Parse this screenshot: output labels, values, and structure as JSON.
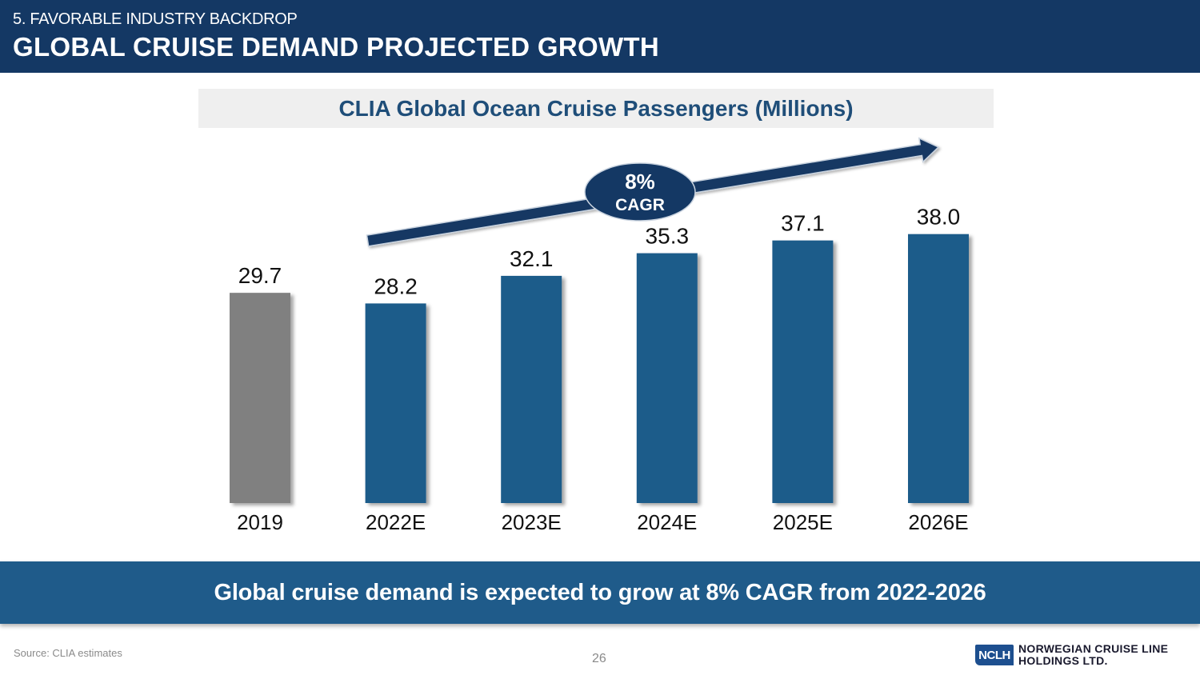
{
  "header": {
    "section_label": "5. FAVORABLE INDUSTRY BACKDROP",
    "title": "GLOBAL CRUISE DEMAND PROJECTED GROWTH"
  },
  "banner": {
    "text": "Global cruise demand is expected to grow at 8% CAGR from 2022-2026"
  },
  "footer": {
    "source": "Source: CLIA estimates",
    "page_number": "26",
    "logo_mark": "NCLH",
    "logo_line1": "NORWEGIAN CRUISE LINE",
    "logo_line2": "HOLDINGS LTD."
  },
  "colors": {
    "header_bg": "#143864",
    "bar_actual": "#808080",
    "bar_estimate": "#1f5b8a",
    "arrow": "#143864",
    "title_text": "#1f4e79"
  },
  "chart_data": {
    "type": "bar",
    "title": "CLIA Global Ocean Cruise Passengers (Millions)",
    "xlabel": "",
    "ylabel": "",
    "categories": [
      "2019",
      "2022E",
      "2023E",
      "2024E",
      "2025E",
      "2026E"
    ],
    "values": [
      29.7,
      28.2,
      32.1,
      35.3,
      37.1,
      38.0
    ],
    "data_labels": [
      "29.7",
      "28.2",
      "32.1",
      "35.3",
      "37.1",
      "38.0"
    ],
    "bar_kinds": [
      "actual",
      "estimate",
      "estimate",
      "estimate",
      "estimate",
      "estimate"
    ],
    "grid": false,
    "legend": "none",
    "annotation": {
      "type": "trend-arrow",
      "label_line1": "8%",
      "label_line2": "CAGR",
      "from_category": "2022E",
      "to_category": "2026E"
    }
  }
}
